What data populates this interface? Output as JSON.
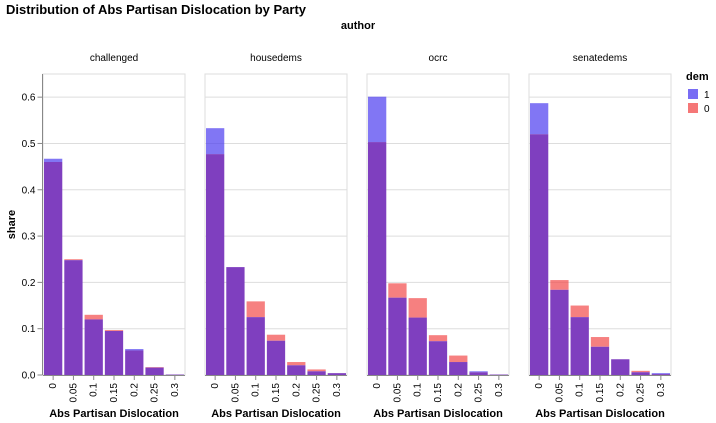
{
  "chart_data": {
    "type": "bar",
    "title": "Distribution of Abs Partisan Dislocation by Party",
    "facet_field": "author",
    "xlabel": "Abs Partisan Dislocation",
    "ylabel": "share",
    "ylim": [
      0,
      0.65
    ],
    "yticks": [
      "0.0",
      "0.1",
      "0.2",
      "0.3",
      "0.4",
      "0.5",
      "0.6"
    ],
    "categories": [
      "0",
      "0.05",
      "0.1",
      "0.15",
      "0.2",
      "0.25",
      "0.3"
    ],
    "grid": true,
    "legend": {
      "title": "dem",
      "position": "top-right",
      "items": [
        {
          "label": "1",
          "color": "#4c3cf0"
        },
        {
          "label": "0",
          "color": "#f24a4a"
        }
      ]
    },
    "overlap_color": "#7f3fbf",
    "panels": [
      {
        "name": "challenged",
        "series": [
          {
            "name": "1",
            "values": [
              0.467,
              0.248,
              0.12,
              0.095,
              0.056,
              0.016,
              0.001
            ]
          },
          {
            "name": "0",
            "values": [
              0.46,
              0.25,
              0.13,
              0.097,
              0.053,
              0.017,
              0.001
            ]
          }
        ]
      },
      {
        "name": "housedems",
        "series": [
          {
            "name": "1",
            "values": [
              0.533,
              0.233,
              0.125,
              0.074,
              0.021,
              0.008,
              0.004
            ]
          },
          {
            "name": "0",
            "values": [
              0.477,
              0.233,
              0.159,
              0.087,
              0.028,
              0.012,
              0.004
            ]
          }
        ]
      },
      {
        "name": "ocrc",
        "series": [
          {
            "name": "1",
            "values": [
              0.601,
              0.167,
              0.124,
              0.073,
              0.028,
              0.008,
              0.001
            ]
          },
          {
            "name": "0",
            "values": [
              0.503,
              0.198,
              0.166,
              0.086,
              0.042,
              0.006,
              0.001
            ]
          }
        ]
      },
      {
        "name": "senatedems",
        "series": [
          {
            "name": "1",
            "values": [
              0.587,
              0.184,
              0.125,
              0.061,
              0.034,
              0.006,
              0.004
            ]
          },
          {
            "name": "0",
            "values": [
              0.52,
              0.205,
              0.15,
              0.082,
              0.034,
              0.009,
              0.002
            ]
          }
        ]
      }
    ]
  }
}
